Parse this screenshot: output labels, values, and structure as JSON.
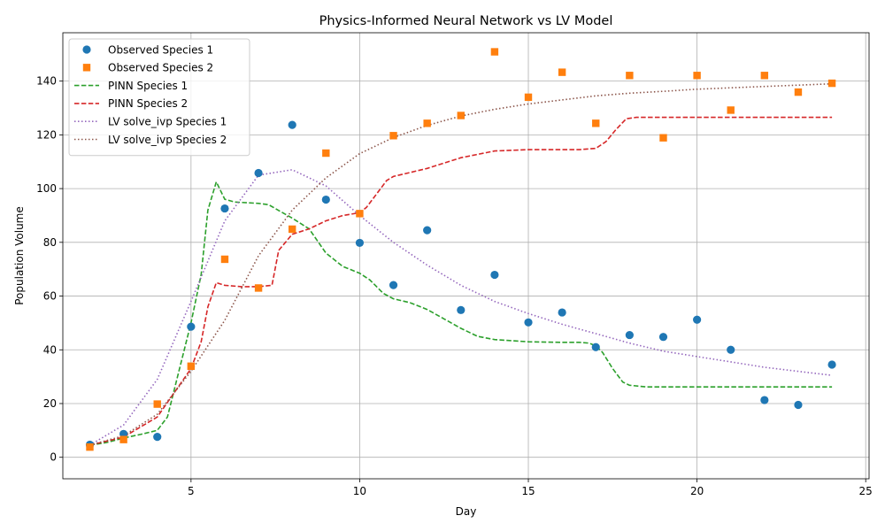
{
  "chart_data": {
    "type": "line",
    "title": "Physics-Informed Neural Network vs LV Model",
    "xlabel": "Day",
    "ylabel": "Population Volume",
    "xlim": [
      1.2,
      25.1
    ],
    "ylim": [
      -8,
      158
    ],
    "xticks": [
      5,
      10,
      15,
      20,
      25
    ],
    "yticks": [
      0,
      20,
      40,
      60,
      80,
      100,
      120,
      140
    ],
    "grid": true,
    "legend_position": "top-left",
    "series": [
      {
        "name": "Observed Species 1",
        "kind": "scatter",
        "marker": "circle",
        "color": "#1f77b4",
        "x": [
          2,
          3,
          4,
          5,
          6,
          7,
          8,
          9,
          10,
          11,
          12,
          13,
          14,
          15,
          16,
          17,
          18,
          19,
          20,
          21,
          22,
          23,
          24
        ],
        "y": [
          4.7,
          8.7,
          7.6,
          48.6,
          92.6,
          105.8,
          123.7,
          95.9,
          79.8,
          64.1,
          84.5,
          54.8,
          67.9,
          50.2,
          53.9,
          41.0,
          45.5,
          44.8,
          51.2,
          40.0,
          21.3,
          19.5,
          34.5
        ]
      },
      {
        "name": "Observed Species 2",
        "kind": "scatter",
        "marker": "square",
        "color": "#ff7f0e",
        "x": [
          2,
          3,
          4,
          5,
          6,
          7,
          8,
          9,
          10,
          11,
          12,
          13,
          14,
          15,
          16,
          17,
          18,
          19,
          20,
          21,
          22,
          23,
          24
        ],
        "y": [
          3.8,
          6.6,
          19.8,
          33.9,
          73.7,
          63.0,
          84.9,
          113.2,
          90.7,
          119.7,
          124.3,
          127.2,
          150.9,
          134.0,
          143.3,
          124.3,
          142.1,
          118.9,
          142.1,
          129.2,
          142.1,
          135.9,
          139.2
        ]
      },
      {
        "name": "PINN Species 1",
        "kind": "line",
        "dash": "dashed",
        "color": "#2ca02c",
        "x": [
          2,
          2.5,
          3,
          3.5,
          4,
          4.3,
          4.6,
          5,
          5.3,
          5.5,
          5.75,
          6,
          6.3,
          7,
          7.3,
          8,
          8.5,
          9,
          9.5,
          10,
          10.3,
          10.7,
          11,
          11.5,
          12,
          12.5,
          13,
          13.5,
          14,
          15,
          16,
          16.5,
          16.8,
          17,
          17.2,
          17.5,
          17.8,
          18,
          18.5,
          20,
          22,
          24
        ],
        "y": [
          4.5,
          5.5,
          7.2,
          8.5,
          10.0,
          15.0,
          30.0,
          50.0,
          68.0,
          92.0,
          102.5,
          96.0,
          95.0,
          94.5,
          94.0,
          89.0,
          85.0,
          76.0,
          71.0,
          68.5,
          66.0,
          61.0,
          59.0,
          57.5,
          55.0,
          51.5,
          48.0,
          45.0,
          43.8,
          43.0,
          42.8,
          42.8,
          42.5,
          41.5,
          39.0,
          33.0,
          28.0,
          26.8,
          26.2,
          26.2,
          26.2,
          26.2
        ]
      },
      {
        "name": "PINN Species 2",
        "kind": "line",
        "dash": "dashed",
        "color": "#d62728",
        "x": [
          2,
          3,
          4,
          4.5,
          5,
          5.3,
          5.5,
          5.75,
          6,
          6.5,
          7,
          7.4,
          7.6,
          8,
          8.5,
          9,
          9.5,
          10,
          10.2,
          10.5,
          10.8,
          11,
          12,
          13,
          14,
          15,
          16,
          16.5,
          17,
          17.3,
          17.6,
          17.9,
          18.2,
          19,
          21,
          24
        ],
        "y": [
          4.5,
          7.5,
          15.0,
          24.0,
          33.0,
          43.0,
          56.0,
          65.0,
          64.0,
          63.5,
          63.5,
          64.0,
          77.0,
          83.0,
          85.0,
          88.0,
          90.0,
          91.0,
          93.0,
          98.0,
          103.0,
          104.5,
          107.5,
          111.5,
          114.0,
          114.5,
          114.5,
          114.5,
          115.0,
          117.5,
          122.0,
          126.0,
          126.5,
          126.5,
          126.5,
          126.5
        ]
      },
      {
        "name": "LV solve_ivp Species 1",
        "kind": "line",
        "dash": "dotted",
        "color": "#9467bd",
        "x": [
          2,
          3,
          4,
          5,
          6,
          7,
          8,
          9,
          10,
          11,
          12,
          13,
          14,
          15,
          16,
          17,
          18,
          19,
          20,
          21,
          22,
          23,
          24
        ],
        "y": [
          4.5,
          12.0,
          29.0,
          58.0,
          88.0,
          105.0,
          107.0,
          101.0,
          90.0,
          80.0,
          71.5,
          64.0,
          58.0,
          53.5,
          49.5,
          46.0,
          42.5,
          39.5,
          37.5,
          35.5,
          33.5,
          32.0,
          30.5
        ]
      },
      {
        "name": "LV solve_ivp Species 2",
        "kind": "line",
        "dash": "dotted",
        "color": "#8c564b",
        "x": [
          2,
          3,
          4,
          5,
          6,
          7,
          8,
          9,
          10,
          11,
          12,
          13,
          14,
          15,
          16,
          17,
          18,
          19,
          20,
          21,
          22,
          23,
          24
        ],
        "y": [
          4.5,
          8.0,
          16.0,
          32.0,
          51.0,
          75.0,
          92.0,
          104.0,
          113.0,
          119.0,
          123.5,
          127.0,
          129.5,
          131.5,
          133.0,
          134.5,
          135.5,
          136.2,
          137.0,
          137.5,
          138.0,
          138.5,
          139.0
        ]
      }
    ]
  }
}
